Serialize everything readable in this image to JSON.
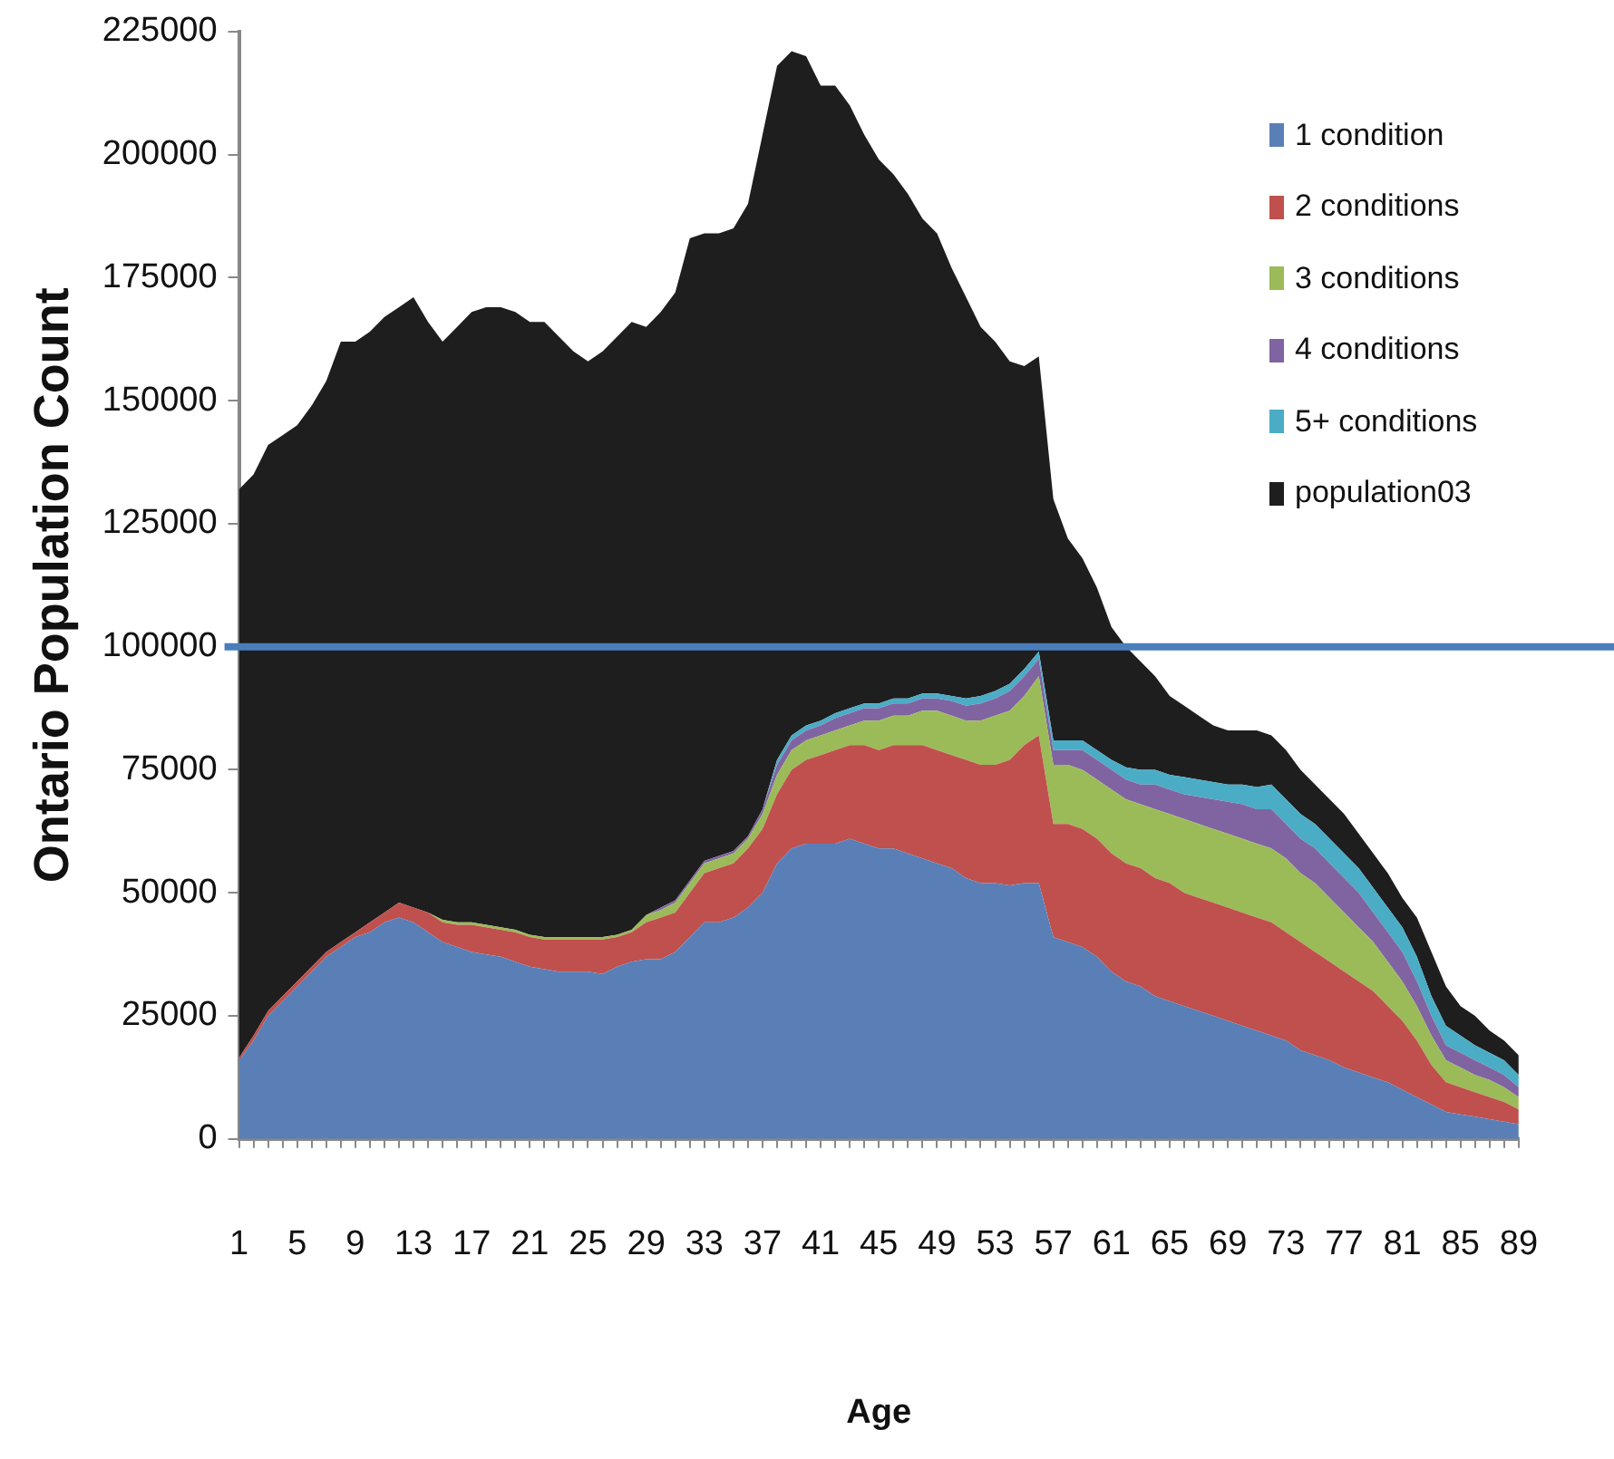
{
  "chart_data": {
    "type": "area",
    "xlabel": "Age",
    "ylabel": "Ontario Population Count",
    "categories": [
      "1",
      null,
      null,
      null,
      "5",
      null,
      null,
      null,
      "9",
      null,
      null,
      null,
      "13",
      null,
      null,
      null,
      "17",
      null,
      null,
      null,
      "21",
      null,
      null,
      null,
      "25",
      null,
      null,
      null,
      "29",
      null,
      null,
      null,
      "33",
      null,
      null,
      null,
      "37",
      null,
      null,
      null,
      "41",
      null,
      null,
      null,
      "45",
      null,
      null,
      null,
      "49",
      null,
      null,
      null,
      "53",
      null,
      null,
      null,
      "57",
      null,
      null,
      null,
      "61",
      null,
      null,
      null,
      "65",
      null,
      null,
      null,
      "69",
      null,
      null,
      null,
      "73",
      null,
      null,
      null,
      "77",
      null,
      null,
      null,
      "81",
      null,
      null,
      null,
      "85",
      null,
      null,
      null,
      "89"
    ],
    "stacked": true,
    "ylim": [
      0,
      225000
    ],
    "yticks": [
      0,
      25000,
      50000,
      75000,
      100000,
      125000,
      150000,
      175000,
      200000,
      225000
    ],
    "legend": "top right",
    "ref_lines": [
      {
        "axis": "y",
        "value": 100000,
        "color": "#4a7ebb"
      }
    ],
    "series": [
      {
        "name": "1 condition",
        "color": "#5a7fb6",
        "values": [
          16000,
          20000,
          25000,
          28000,
          31000,
          34000,
          37000,
          39000,
          41000,
          42000,
          44000,
          45000,
          44000,
          42000,
          40000,
          39000,
          38000,
          37500,
          37000,
          36000,
          35000,
          34500,
          34000,
          34000,
          34000,
          33500,
          35000,
          36000,
          36500,
          36500,
          38000,
          41000,
          44000,
          44000,
          45000,
          47000,
          50000,
          56000,
          59000,
          60000,
          60000,
          60000,
          61000,
          60000,
          59000,
          59000,
          58000,
          57000,
          56000,
          55000,
          53000,
          52000,
          52000,
          51500,
          52000,
          52000,
          41000,
          40000,
          39000,
          37000,
          34000,
          32000,
          31000,
          29000,
          28000,
          27000,
          26000,
          25000,
          24000,
          23000,
          22000,
          21000,
          20000,
          18000,
          17000,
          16000,
          14500,
          13500,
          12500,
          11500,
          10000,
          8500,
          7000,
          5500,
          5000,
          4500,
          4000,
          3500,
          3000
        ]
      },
      {
        "name": "2 conditions",
        "color": "#c0504d",
        "values": [
          500,
          1000,
          1000,
          1000,
          1000,
          1000,
          1000,
          1000,
          1000,
          2000,
          2000,
          3000,
          3000,
          4000,
          4000,
          4500,
          5500,
          5500,
          5500,
          6000,
          6000,
          6000,
          6500,
          6500,
          6500,
          7000,
          6000,
          6000,
          7500,
          8500,
          8000,
          9000,
          10000,
          11000,
          11000,
          12000,
          13000,
          14000,
          16000,
          17000,
          18000,
          19000,
          19000,
          20000,
          20000,
          21000,
          22000,
          23000,
          23000,
          23000,
          24000,
          24000,
          24000,
          25500,
          28000,
          30000,
          23000,
          24000,
          24000,
          24000,
          24000,
          24000,
          24000,
          24000,
          24000,
          23000,
          23000,
          23000,
          23000,
          23000,
          23000,
          23000,
          22000,
          22000,
          21000,
          20000,
          19500,
          18500,
          17500,
          15500,
          14000,
          11500,
          8000,
          6000,
          5500,
          5000,
          4500,
          4000,
          3000
        ]
      },
      {
        "name": "3 conditions",
        "color": "#9bbb59",
        "values": [
          0,
          0,
          0,
          0,
          0,
          0,
          0,
          0,
          0,
          0,
          0,
          0,
          0,
          0,
          500,
          500,
          500,
          500,
          500,
          500,
          500,
          500,
          500,
          500,
          500,
          500,
          500,
          500,
          1500,
          1500,
          2000,
          2000,
          2000,
          2000,
          2000,
          2000,
          3000,
          4000,
          4000,
          4000,
          4000,
          4000,
          4000,
          5000,
          6000,
          6000,
          6000,
          7000,
          8000,
          8000,
          8000,
          9000,
          10000,
          10000,
          10000,
          12000,
          12000,
          12000,
          12000,
          12000,
          13000,
          13000,
          13000,
          14000,
          14000,
          15000,
          15000,
          15000,
          15000,
          15000,
          15000,
          15000,
          15000,
          14000,
          14000,
          13000,
          12000,
          11000,
          10000,
          9000,
          8000,
          7000,
          6000,
          4500,
          4000,
          3500,
          3500,
          3000,
          2500
        ]
      },
      {
        "name": "4 conditions",
        "color": "#8064a2",
        "values": [
          0,
          0,
          0,
          0,
          0,
          0,
          0,
          0,
          0,
          0,
          0,
          0,
          0,
          0,
          0,
          0,
          0,
          0,
          0,
          0,
          0,
          0,
          0,
          0,
          0,
          0,
          0,
          0,
          0,
          500,
          500,
          500,
          500,
          500,
          500,
          500,
          1000,
          2000,
          2000,
          2000,
          2000,
          2500,
          2500,
          2500,
          2500,
          2500,
          2500,
          2500,
          2500,
          3000,
          3000,
          3500,
          3500,
          4000,
          4000,
          3500,
          3000,
          3000,
          4000,
          4000,
          4000,
          4000,
          4000,
          5000,
          5000,
          5000,
          5500,
          6000,
          6500,
          7000,
          7000,
          8000,
          7000,
          7000,
          7000,
          7000,
          7000,
          7000,
          6000,
          6000,
          6000,
          5000,
          4000,
          3000,
          3000,
          3000,
          2500,
          2500,
          2000
        ]
      },
      {
        "name": "5+ conditions",
        "color": "#4bacc6",
        "values": [
          0,
          0,
          0,
          0,
          0,
          0,
          0,
          0,
          0,
          0,
          0,
          0,
          0,
          0,
          0,
          0,
          0,
          0,
          0,
          0,
          0,
          0,
          0,
          0,
          0,
          0,
          0,
          0,
          0,
          0,
          0,
          0,
          0,
          0,
          0,
          0,
          0,
          1000,
          1000,
          1000,
          1000,
          1000,
          1000,
          1000,
          1000,
          1000,
          1000,
          1000,
          1000,
          1000,
          1500,
          1500,
          1500,
          1500,
          1500,
          1500,
          2000,
          2000,
          2000,
          2000,
          2000,
          2500,
          3000,
          3000,
          3000,
          3500,
          3500,
          3500,
          3500,
          4000,
          4500,
          5000,
          5000,
          5000,
          5000,
          5000,
          5000,
          5000,
          5000,
          5000,
          5000,
          5000,
          4000,
          4000,
          3500,
          3000,
          3000,
          3000,
          2500
        ]
      },
      {
        "name": "population03",
        "color": "#1e1e1e",
        "values": [
          115500,
          114000,
          115000,
          114000,
          113000,
          114000,
          116000,
          122000,
          120000,
          120000,
          121000,
          121000,
          124000,
          120000,
          117500,
          121000,
          124000,
          125500,
          126000,
          125500,
          124500,
          125000,
          122000,
          119000,
          117000,
          119000,
          121500,
          123500,
          119500,
          121000,
          123500,
          130500,
          127500,
          126500,
          126500,
          128500,
          137000,
          141000,
          139000,
          136000,
          129000,
          127500,
          122500,
          115500,
          110500,
          106500,
          102500,
          96500,
          93500,
          87000,
          81500,
          75000,
          71000,
          65500,
          61500,
          60000,
          49000,
          41000,
          37000,
          33000,
          27000,
          24500,
          22000,
          19000,
          16000,
          14500,
          13000,
          11500,
          11000,
          11000,
          11500,
          10000,
          10000,
          9000,
          8000,
          8000,
          8000,
          7000,
          7000,
          7000,
          6000,
          8000,
          9000,
          8000,
          6000,
          6000,
          4500,
          4000,
          4000
        ]
      }
    ]
  }
}
